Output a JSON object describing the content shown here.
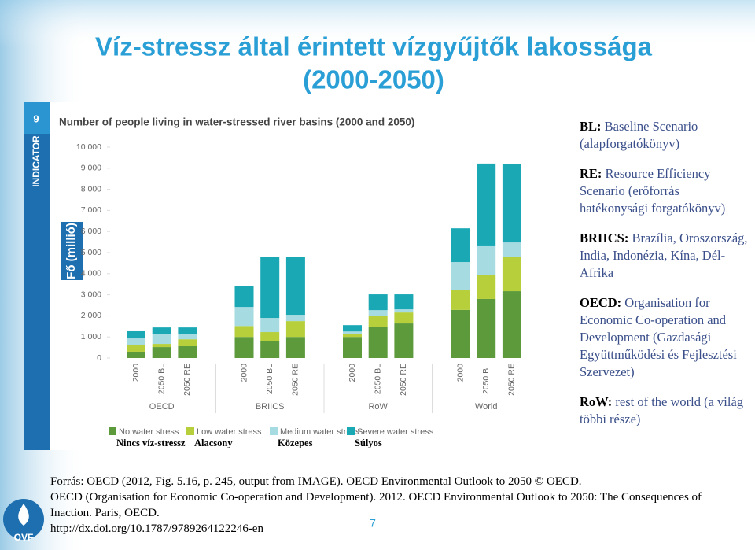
{
  "slide_title": "Víz-stressz által érintett vízgyűjtők lakossága (2000-2050)",
  "chart_data": {
    "type": "stacked-bar",
    "title": "Number of people living in water-stressed river basins (2000 and 2050)",
    "indicator_label": "INDICATOR",
    "indicator_number": "9",
    "y_label": "Fő (millió)",
    "categories": [
      "2000",
      "2050 BL",
      "2050 RE",
      "2000",
      "2050 BL",
      "2050 RE",
      "2000",
      "2050 BL",
      "2050 RE",
      "2000",
      "2050 BL",
      "2050 RE"
    ],
    "groups": [
      "OECD",
      "BRIICS",
      "RoW",
      "World"
    ],
    "ylim": [
      0,
      10000
    ],
    "yticks": [
      0,
      {
        "value": 1000,
        "label": "1 000"
      },
      {
        "value": 2000,
        "label": "2 000"
      },
      {
        "value": 3000,
        "label": "3 000"
      },
      {
        "value": 4000,
        "label": "4 000"
      },
      {
        "value": 5000,
        "label": "5 000"
      },
      {
        "value": 6000,
        "label": "6 000"
      },
      {
        "value": 7000,
        "label": "7 000"
      },
      {
        "value": 8000,
        "label": "8 000"
      },
      {
        "value": 9000,
        "label": "9 000"
      },
      {
        "value": 10000,
        "label": "10 000"
      }
    ],
    "series": [
      {
        "name": "No water stress",
        "translation": "Nincs víz-stressz",
        "color": "#5c9a3c",
        "values": [
          300,
          520,
          560,
          1000,
          820,
          1000,
          1000,
          1490,
          1640,
          2280,
          2800,
          3170
        ]
      },
      {
        "name": "Low water stress",
        "translation": "Alacsony",
        "color": "#b6cf3b",
        "values": [
          330,
          150,
          330,
          520,
          410,
          750,
          150,
          520,
          520,
          930,
          1120,
          1640
        ]
      },
      {
        "name": "Medium water stress",
        "translation": "Közepes",
        "color": "#a6dbe2",
        "values": [
          300,
          450,
          260,
          900,
          670,
          300,
          110,
          260,
          150,
          1340,
          1380,
          670
        ]
      },
      {
        "name": "Severe water stress",
        "translation": "Súlyos",
        "color": "#1aa8b5",
        "values": [
          340,
          330,
          300,
          1000,
          2910,
          2760,
          300,
          750,
          710,
          1600,
          3920,
          3730
        ]
      }
    ]
  },
  "notes": [
    {
      "term": "BL:",
      "text": "Baseline Scenario (alapforgatókönyv)"
    },
    {
      "term": "RE:",
      "text": "Resource Efficiency Scenario (erőforrás hatékonysági forgatókönyv)"
    },
    {
      "term": "BRIICS:",
      "text": "Brazília, Oroszország, India, Indonézia, Kína, Dél-Afrika"
    },
    {
      "term": "OECD:",
      "text": "Organisation for Economic Co-operation and Development (Gazdasági Együttműködési és Fejlesztési Szervezet)"
    },
    {
      "term": "RoW:",
      "text": "rest of the world (a világ többi része)"
    }
  ],
  "source_lines": [
    "Forrás: OECD (2012, Fig. 5.16, p. 245, output from IMAGE). OECD Environmental Outlook to 2050 © OECD.",
    "OECD (Organisation for Economic Co-operation and Development). 2012. OECD Environmental Outlook to 2050: The Consequences of",
    "Inaction. Paris, OECD.",
    "http://dx.doi.org/10.1787/9789264122246-en"
  ],
  "page_number": "7",
  "logo": "OVF"
}
